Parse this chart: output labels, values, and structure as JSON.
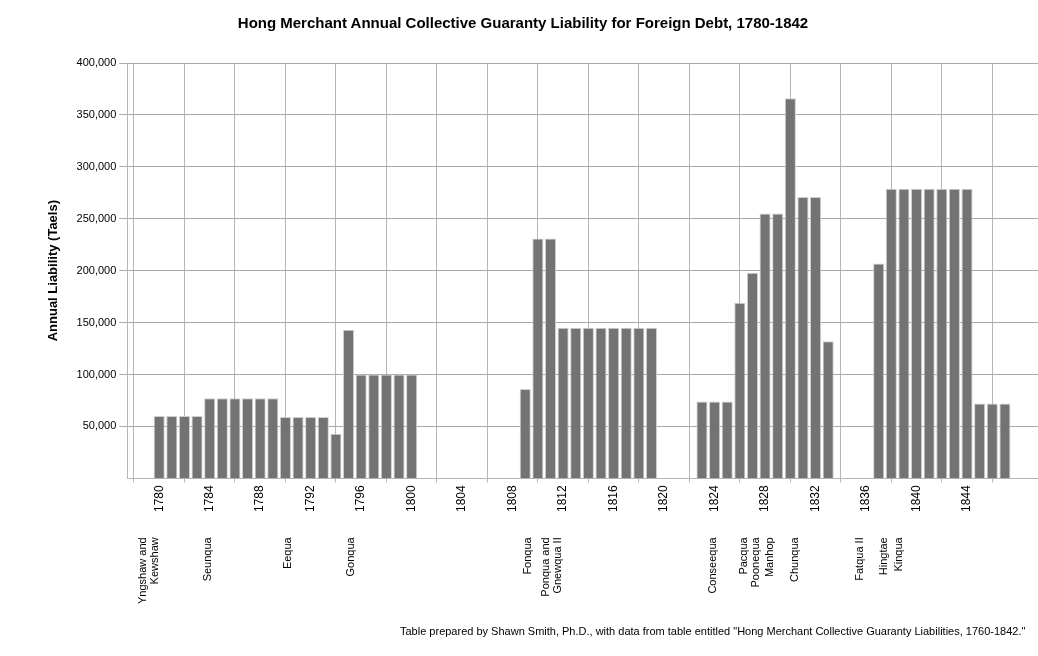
{
  "chart_data": {
    "type": "bar",
    "title": "Hong Merchant Annual Collective Guaranty Liability for Foreign Debt, 1780-1842",
    "ylabel": "Annual Liability (Taels)",
    "x": [
      1780,
      1781,
      1782,
      1783,
      1784,
      1785,
      1786,
      1787,
      1788,
      1789,
      1790,
      1791,
      1792,
      1793,
      1794,
      1795,
      1796,
      1797,
      1798,
      1799,
      1800,
      1809,
      1810,
      1811,
      1812,
      1813,
      1814,
      1815,
      1816,
      1817,
      1818,
      1819,
      1823,
      1824,
      1825,
      1826,
      1827,
      1828,
      1829,
      1830,
      1831,
      1832,
      1833,
      1837,
      1838,
      1839,
      1840,
      1841,
      1842,
      1843,
      1844,
      1845,
      1846,
      1847
    ],
    "values": [
      60000,
      60000,
      60000,
      60000,
      77000,
      77000,
      77000,
      77000,
      77000,
      77000,
      59000,
      59000,
      59000,
      59000,
      43000,
      143000,
      100000,
      100000,
      100000,
      100000,
      100000,
      86000,
      231000,
      231000,
      145000,
      145000,
      145000,
      145000,
      145000,
      145000,
      145000,
      145000,
      74000,
      74000,
      74000,
      169000,
      198000,
      255000,
      255000,
      366000,
      271000,
      271000,
      132000,
      207000,
      279000,
      279000,
      279000,
      279000,
      279000,
      279000,
      279000,
      72000,
      72000,
      72000
    ],
    "color": "#737373",
    "xlim": [
      1779.6,
      1847.5
    ],
    "xticks": [
      1780,
      1784,
      1788,
      1792,
      1796,
      1800,
      1804,
      1808,
      1812,
      1816,
      1820,
      1824,
      1828,
      1832,
      1836,
      1840,
      1844
    ],
    "ylim": [
      0,
      400000
    ],
    "yticks": [
      {
        "value": 50000,
        "label": "50,000"
      },
      {
        "value": 100000,
        "label": "100,000"
      },
      {
        "value": 150000,
        "label": "150,000"
      },
      {
        "value": 200000,
        "label": "200,000"
      },
      {
        "value": 250000,
        "label": "250,000"
      },
      {
        "value": 300000,
        "label": "300,000"
      },
      {
        "value": 350000,
        "label": "350,000"
      },
      {
        "value": 400000,
        "label": "400,000"
      }
    ],
    "grid": true,
    "annotations": [
      "Yngshaw and\nKewshaw",
      "Seunqua",
      "Eequa",
      "Gonqua",
      "Fonqua",
      "Ponqua and\nGnewqua II",
      "Conseequa",
      "Pacqua",
      "Poonequa",
      "Manhop",
      "Chunqua",
      "Fatqua II",
      "Hingtae",
      "Kinqua",
      "Table prepared by Shawn Smith, Ph.D., with data from table entitled \"Hong Merchant Collective Guaranty Liabilities, 1760-1842.\""
    ]
  }
}
